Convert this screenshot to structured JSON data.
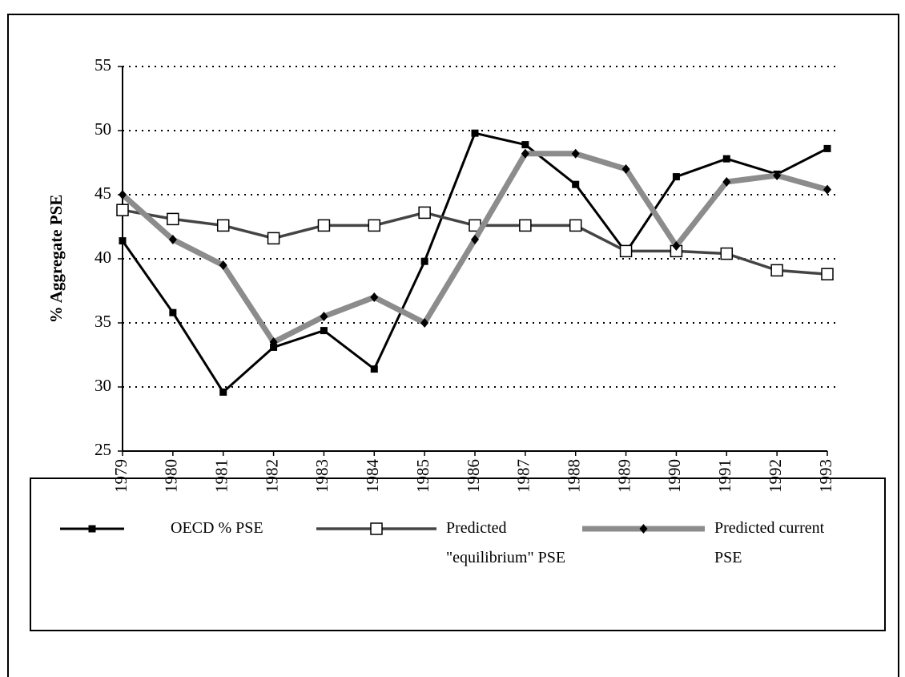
{
  "chart_data": {
    "type": "line",
    "y_label": "% Aggregate PSE",
    "categories": [
      "1979",
      "1980",
      "1981",
      "1982",
      "1983",
      "1984",
      "1985",
      "1986",
      "1987",
      "1988",
      "1989",
      "1990",
      "1991",
      "1992",
      "1993"
    ],
    "series": [
      {
        "name": "OECD % PSE",
        "color": "#000000",
        "values": [
          41.4,
          35.8,
          29.6,
          33.1,
          34.4,
          31.4,
          39.8,
          49.8,
          48.9,
          45.8,
          40.5,
          46.4,
          47.8,
          46.6,
          48.6
        ]
      },
      {
        "name": "Predicted \"equilibrium\" PSE",
        "color": "#444444",
        "values": [
          43.8,
          43.1,
          42.6,
          41.6,
          42.6,
          42.6,
          43.6,
          42.6,
          42.6,
          42.6,
          40.6,
          40.6,
          40.4,
          39.1,
          38.8
        ]
      },
      {
        "name": "Predicted current PSE",
        "color": "#8c8c8c",
        "values": [
          45.0,
          41.5,
          39.5,
          33.5,
          35.5,
          37.0,
          35.0,
          41.5,
          48.2,
          48.2,
          47.0,
          41.0,
          46.0,
          46.5,
          45.4
        ]
      }
    ],
    "ylim": [
      25,
      55
    ],
    "yticks": [
      25,
      30,
      35,
      40,
      45,
      50,
      55
    ],
    "grid": true,
    "legend": "bottom"
  }
}
